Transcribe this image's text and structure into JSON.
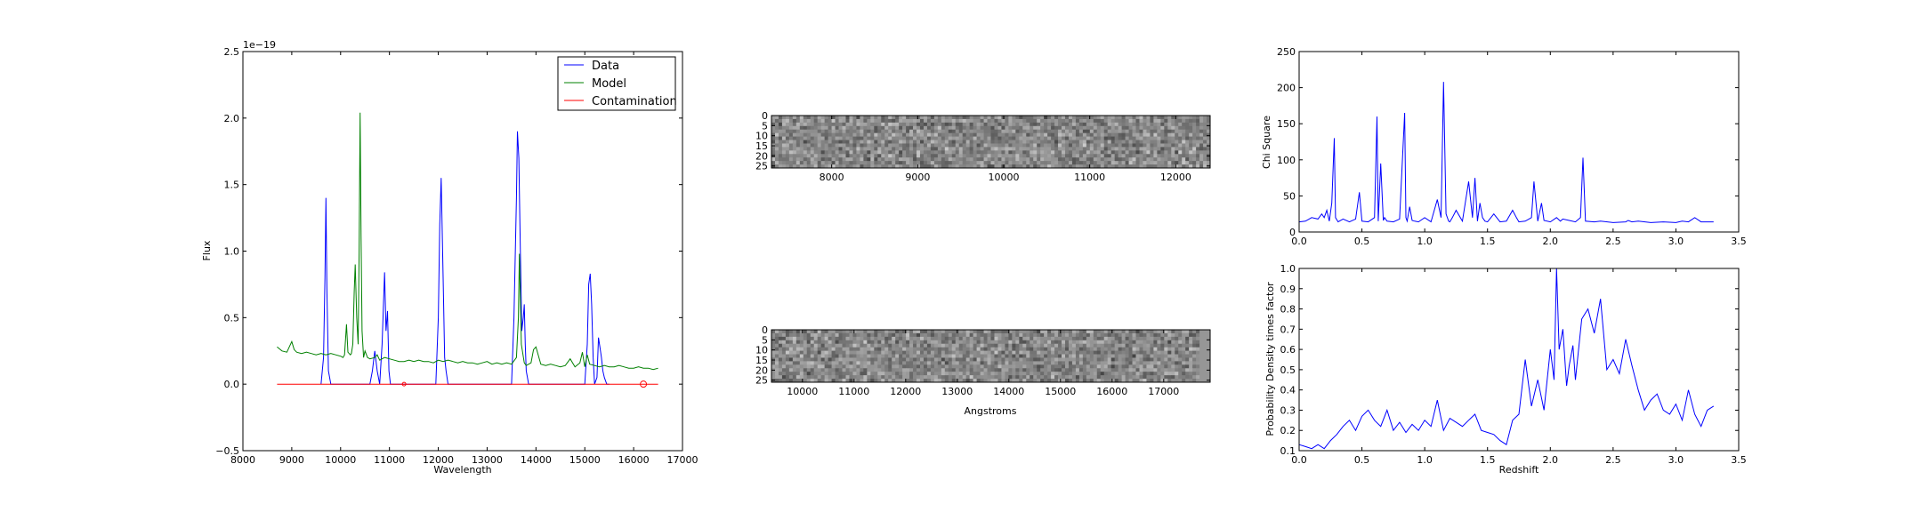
{
  "chart_data": [
    {
      "type": "line",
      "xlabel": "Wavelength",
      "ylabel": "Flux",
      "offset_label": "1e−19",
      "xlim": [
        8000,
        17000
      ],
      "ylim": [
        -0.5,
        2.5
      ],
      "xticks": [
        "8000",
        "9000",
        "10000",
        "11000",
        "12000",
        "13000",
        "14000",
        "15000",
        "16000",
        "17000"
      ],
      "yticks": [
        "−0.5",
        "0.0",
        "0.5",
        "1.0",
        "1.5",
        "2.0",
        "2.5"
      ],
      "legend_position": "top-right",
      "colors": {
        "data": "#0000ff",
        "model": "#008000",
        "contamination": "#ff0000"
      },
      "series": [
        {
          "name": "Data",
          "color": "#0000ff",
          "x": [
            9600,
            9650,
            9680,
            9700,
            9720,
            9750,
            9800,
            10600,
            10650,
            10700,
            10750,
            10800,
            10850,
            10900,
            10930,
            10960,
            10990,
            11020,
            11060,
            11100,
            11950,
            12000,
            12030,
            12060,
            12100,
            12130,
            12160,
            12200,
            13500,
            13550,
            13600,
            13620,
            13650,
            13680,
            13710,
            13740,
            13760,
            13780,
            13800,
            13850,
            15000,
            15050,
            15080,
            15110,
            15140,
            15170,
            15200,
            15250,
            15280,
            15310,
            15340,
            15370,
            15400,
            15450,
            15500
          ],
          "y": [
            0,
            0.2,
            0.8,
            1.4,
            0.7,
            0.1,
            0,
            0,
            0.1,
            0.25,
            0.1,
            0,
            0.3,
            0.84,
            0.4,
            0.55,
            0.1,
            0,
            0,
            0,
            0,
            0.5,
            1.2,
            1.55,
            0.8,
            0.2,
            0.1,
            0,
            0,
            0.5,
            1.4,
            1.9,
            1.7,
            1.0,
            0.4,
            0.5,
            0.6,
            0.3,
            0.1,
            0,
            0,
            0.3,
            0.75,
            0.83,
            0.6,
            0.2,
            0,
            0.05,
            0.35,
            0.28,
            0.2,
            0.1,
            0.05,
            0,
            0
          ]
        },
        {
          "name": "Model",
          "color": "#008000",
          "x": [
            8700,
            8800,
            8900,
            8950,
            9000,
            9050,
            9100,
            9200,
            9300,
            9400,
            9500,
            9600,
            9700,
            9800,
            9900,
            10000,
            10050,
            10080,
            10120,
            10150,
            10200,
            10220,
            10250,
            10280,
            10300,
            10330,
            10360,
            10380,
            10400,
            10420,
            10440,
            10470,
            10500,
            10550,
            10600,
            10700,
            10750,
            10800,
            10900,
            11000,
            11100,
            11200,
            11300,
            11400,
            11500,
            11600,
            11700,
            11800,
            11900,
            12000,
            12100,
            12200,
            12300,
            12400,
            12500,
            12600,
            12700,
            12800,
            12900,
            13000,
            13100,
            13200,
            13300,
            13400,
            13500,
            13600,
            13640,
            13660,
            13700,
            13760,
            13800,
            13850,
            13900,
            13950,
            14000,
            14100,
            14200,
            14300,
            14400,
            14500,
            14600,
            14700,
            14800,
            14900,
            14950,
            15000,
            15050,
            15100,
            15200,
            15300,
            15400,
            15500,
            15600,
            15700,
            15800,
            15900,
            16000,
            16100,
            16200,
            16300,
            16400,
            16500
          ],
          "y": [
            0.28,
            0.25,
            0.24,
            0.28,
            0.32,
            0.26,
            0.24,
            0.23,
            0.24,
            0.23,
            0.22,
            0.23,
            0.22,
            0.23,
            0.22,
            0.21,
            0.2,
            0.22,
            0.45,
            0.24,
            0.22,
            0.23,
            0.3,
            0.7,
            0.9,
            0.5,
            0.3,
            1.0,
            2.04,
            1.1,
            0.4,
            0.2,
            0.25,
            0.2,
            0.19,
            0.2,
            0.22,
            0.18,
            0.2,
            0.19,
            0.18,
            0.17,
            0.17,
            0.18,
            0.17,
            0.18,
            0.17,
            0.17,
            0.16,
            0.18,
            0.17,
            0.18,
            0.17,
            0.16,
            0.17,
            0.16,
            0.16,
            0.15,
            0.16,
            0.17,
            0.15,
            0.16,
            0.15,
            0.16,
            0.15,
            0.2,
            0.5,
            0.98,
            0.3,
            0.16,
            0.14,
            0.15,
            0.16,
            0.26,
            0.28,
            0.15,
            0.14,
            0.15,
            0.14,
            0.13,
            0.14,
            0.19,
            0.13,
            0.16,
            0.24,
            0.13,
            0.22,
            0.15,
            0.14,
            0.13,
            0.14,
            0.13,
            0.13,
            0.14,
            0.13,
            0.12,
            0.12,
            0.13,
            0.12,
            0.12,
            0.11,
            0.12
          ]
        },
        {
          "name": "Contamination",
          "color": "#ff0000",
          "x": [
            8700,
            16500
          ],
          "y": [
            0,
            0
          ]
        }
      ]
    },
    {
      "type": "heatmap",
      "xticks": [
        "8000",
        "9000",
        "10000",
        "11000",
        "12000"
      ],
      "yticks": [
        "0",
        "5",
        "10",
        "15",
        "20",
        "25"
      ],
      "xlim": [
        7300,
        12400
      ],
      "ylim": [
        0,
        26
      ],
      "colormap": "gray"
    },
    {
      "type": "heatmap",
      "xlabel": "Angstroms",
      "xticks": [
        "10000",
        "11000",
        "12000",
        "13000",
        "14000",
        "15000",
        "16000",
        "17000"
      ],
      "yticks": [
        "0",
        "5",
        "10",
        "15",
        "20",
        "25"
      ],
      "xlim": [
        9400,
        17900
      ],
      "ylim": [
        0,
        26
      ],
      "colormap": "gray"
    },
    {
      "type": "line",
      "ylabel": "Chi Square",
      "xlim": [
        0,
        3.5
      ],
      "ylim": [
        0,
        250
      ],
      "xticks": [
        "0.0",
        "0.5",
        "1.0",
        "1.5",
        "2.0",
        "2.5",
        "3.0",
        "3.5"
      ],
      "yticks": [
        "0",
        "50",
        "100",
        "150",
        "200",
        "250"
      ],
      "series": [
        {
          "color": "#0000ff",
          "x": [
            0,
            0.05,
            0.1,
            0.15,
            0.18,
            0.2,
            0.22,
            0.24,
            0.26,
            0.28,
            0.29,
            0.31,
            0.35,
            0.4,
            0.45,
            0.48,
            0.5,
            0.55,
            0.6,
            0.62,
            0.63,
            0.65,
            0.67,
            0.68,
            0.7,
            0.75,
            0.8,
            0.84,
            0.85,
            0.86,
            0.88,
            0.9,
            0.92,
            0.95,
            1.0,
            1.05,
            1.1,
            1.13,
            1.15,
            1.17,
            1.19,
            1.2,
            1.22,
            1.25,
            1.3,
            1.35,
            1.38,
            1.4,
            1.42,
            1.44,
            1.46,
            1.48,
            1.5,
            1.55,
            1.6,
            1.65,
            1.7,
            1.73,
            1.75,
            1.8,
            1.85,
            1.87,
            1.9,
            1.93,
            1.95,
            2.0,
            2.05,
            2.08,
            2.1,
            2.15,
            2.2,
            2.24,
            2.26,
            2.28,
            2.35,
            2.4,
            2.5,
            2.6,
            2.62,
            2.65,
            2.7,
            2.8,
            2.9,
            3.0,
            3.05,
            3.1,
            3.15,
            3.2,
            3.3
          ],
          "y": [
            14,
            15,
            20,
            18,
            25,
            20,
            30,
            15,
            40,
            130,
            20,
            14,
            18,
            14,
            18,
            55,
            15,
            14,
            20,
            160,
            15,
            95,
            16,
            20,
            15,
            14,
            18,
            165,
            20,
            15,
            35,
            16,
            15,
            14,
            20,
            14,
            45,
            20,
            208,
            25,
            15,
            14,
            20,
            30,
            15,
            70,
            20,
            75,
            15,
            40,
            20,
            15,
            14,
            25,
            14,
            15,
            30,
            20,
            14,
            15,
            20,
            70,
            15,
            40,
            16,
            14,
            20,
            15,
            18,
            16,
            14,
            20,
            103,
            15,
            14,
            15,
            13,
            14,
            16,
            14,
            15,
            13,
            14,
            13,
            15,
            14,
            20,
            14,
            14
          ]
        }
      ]
    },
    {
      "type": "line",
      "xlabel": "Redshift",
      "ylabel": "Probability Density times factor",
      "xlim": [
        0,
        3.5
      ],
      "ylim": [
        0.1,
        1.0
      ],
      "xticks": [
        "0.0",
        "0.5",
        "1.0",
        "1.5",
        "2.0",
        "2.5",
        "3.0",
        "3.5"
      ],
      "yticks": [
        "0.1",
        "0.2",
        "0.3",
        "0.4",
        "0.5",
        "0.6",
        "0.7",
        "0.8",
        "0.9",
        "1.0"
      ],
      "series": [
        {
          "color": "#0000ff",
          "x": [
            0,
            0.05,
            0.1,
            0.15,
            0.2,
            0.25,
            0.3,
            0.35,
            0.4,
            0.45,
            0.5,
            0.55,
            0.6,
            0.65,
            0.7,
            0.75,
            0.8,
            0.85,
            0.9,
            0.95,
            1.0,
            1.05,
            1.1,
            1.15,
            1.2,
            1.25,
            1.3,
            1.35,
            1.4,
            1.45,
            1.5,
            1.55,
            1.6,
            1.65,
            1.7,
            1.75,
            1.8,
            1.85,
            1.9,
            1.95,
            2.0,
            2.03,
            2.05,
            2.07,
            2.1,
            2.13,
            2.15,
            2.18,
            2.2,
            2.25,
            2.3,
            2.35,
            2.4,
            2.45,
            2.5,
            2.55,
            2.6,
            2.65,
            2.7,
            2.75,
            2.8,
            2.85,
            2.9,
            2.95,
            3.0,
            3.05,
            3.1,
            3.15,
            3.2,
            3.25,
            3.3
          ],
          "y": [
            0.13,
            0.12,
            0.11,
            0.13,
            0.11,
            0.15,
            0.18,
            0.22,
            0.25,
            0.2,
            0.27,
            0.3,
            0.25,
            0.22,
            0.3,
            0.2,
            0.24,
            0.19,
            0.23,
            0.2,
            0.25,
            0.22,
            0.35,
            0.2,
            0.26,
            0.24,
            0.22,
            0.25,
            0.28,
            0.2,
            0.19,
            0.18,
            0.15,
            0.13,
            0.25,
            0.28,
            0.55,
            0.32,
            0.45,
            0.3,
            0.6,
            0.45,
            1.0,
            0.6,
            0.7,
            0.42,
            0.52,
            0.62,
            0.45,
            0.75,
            0.8,
            0.68,
            0.85,
            0.5,
            0.55,
            0.48,
            0.65,
            0.52,
            0.4,
            0.3,
            0.35,
            0.38,
            0.3,
            0.28,
            0.33,
            0.25,
            0.4,
            0.28,
            0.22,
            0.3,
            0.32
          ]
        }
      ]
    }
  ]
}
